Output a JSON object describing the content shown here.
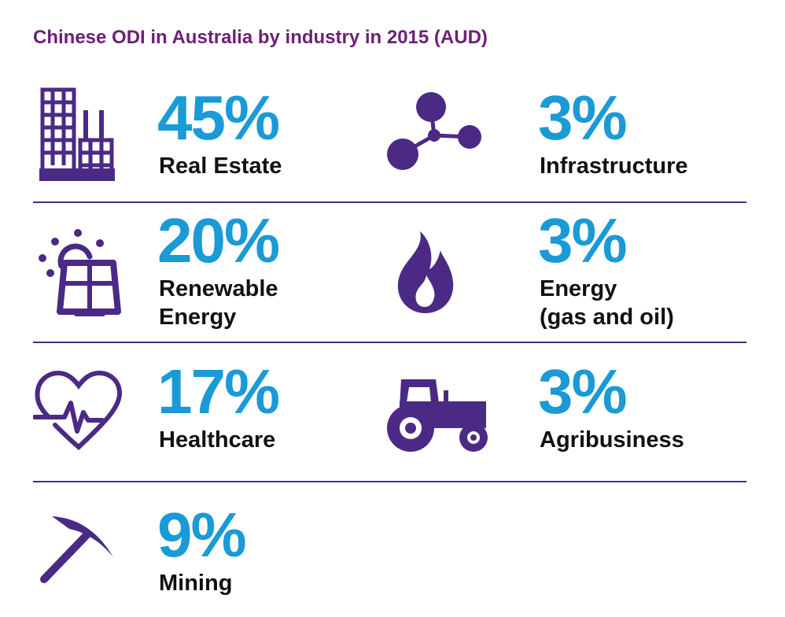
{
  "title": "Chinese ODI in Australia by industry in 2015 (AUD)",
  "colors": {
    "title": "#6d2077",
    "percent": "#1a9ad6",
    "icon": "#4b2a85",
    "divider": "#4b2a85"
  },
  "chart_data": {
    "type": "table",
    "title": "Chinese ODI in Australia by industry in 2015 (AUD)",
    "unit": "%",
    "items": [
      {
        "label": "Real Estate",
        "value": 45,
        "display": "45%",
        "icon": "buildings-icon"
      },
      {
        "label": "Infrastructure",
        "value": 3,
        "display": "3%",
        "icon": "network-nodes-icon"
      },
      {
        "label": "Renewable\nEnergy",
        "value": 20,
        "display": "20%",
        "icon": "solar-panel-icon"
      },
      {
        "label": "Energy\n(gas and oil)",
        "value": 3,
        "display": "3%",
        "icon": "flame-icon"
      },
      {
        "label": "Healthcare",
        "value": 17,
        "display": "17%",
        "icon": "heart-pulse-icon"
      },
      {
        "label": "Agribusiness",
        "value": 3,
        "display": "3%",
        "icon": "tractor-icon"
      },
      {
        "label": "Mining",
        "value": 9,
        "display": "9%",
        "icon": "pickaxe-icon"
      }
    ]
  }
}
